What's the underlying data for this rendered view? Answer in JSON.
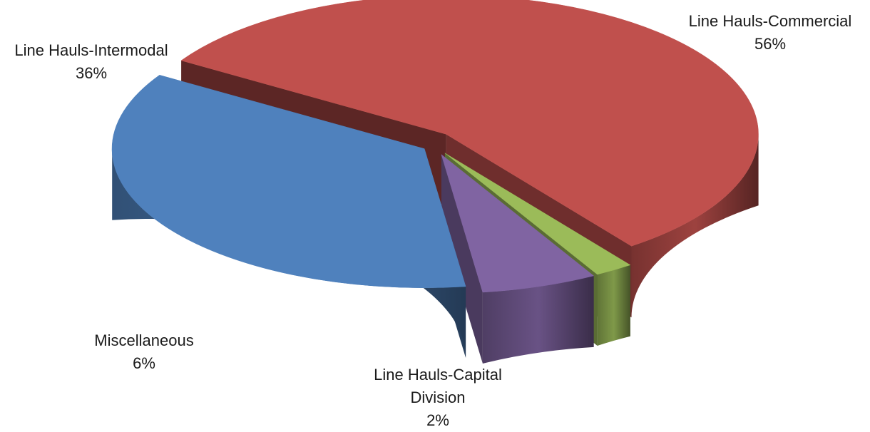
{
  "chart_data": {
    "type": "pie",
    "style": "3d-exploded",
    "title": "",
    "legend": "none",
    "slices": [
      {
        "label": "Line Hauls-Commercial",
        "label_lines": [
          "Line Hauls-Commercial"
        ],
        "value": 56,
        "percent_label": "56%",
        "color": "#C0504D"
      },
      {
        "label": "Line Hauls-Capital Division",
        "label_lines": [
          "Line Hauls-Capital",
          "Division"
        ],
        "value": 2,
        "percent_label": "2%",
        "color": "#9BBB59"
      },
      {
        "label": "Miscellaneous",
        "label_lines": [
          "Miscellaneous"
        ],
        "value": 6,
        "percent_label": "6%",
        "color": "#8064A2"
      },
      {
        "label": "Line Hauls-Intermodal",
        "label_lines": [
          "Line Hauls-Intermodal"
        ],
        "value": 36,
        "percent_label": "36%",
        "color": "#4F81BD"
      }
    ]
  }
}
